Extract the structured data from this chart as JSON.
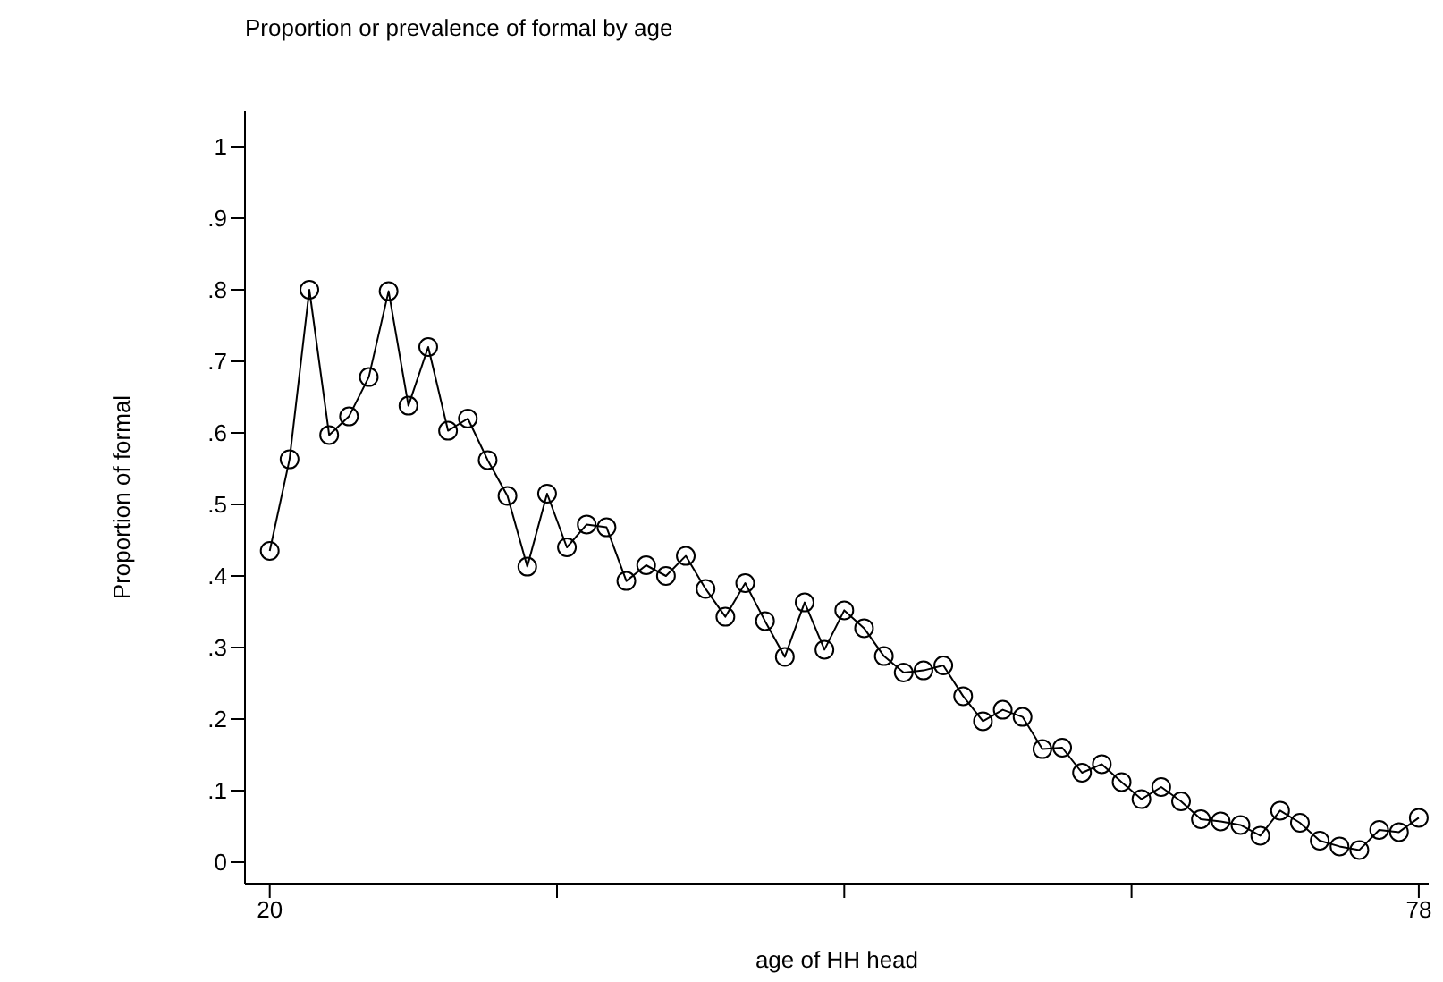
{
  "chart_data": {
    "type": "line",
    "title": "Proportion or prevalence of formal by age",
    "xlabel": "age of HH head",
    "ylabel": "Proportion of formal",
    "x": [
      20,
      21,
      22,
      23,
      24,
      25,
      26,
      27,
      28,
      29,
      30,
      31,
      32,
      33,
      34,
      35,
      36,
      37,
      38,
      39,
      40,
      41,
      42,
      43,
      44,
      45,
      46,
      47,
      48,
      49,
      50,
      51,
      52,
      53,
      54,
      55,
      56,
      57,
      58,
      59,
      60,
      61,
      62,
      63,
      64,
      65,
      66,
      67,
      68,
      69,
      70,
      71,
      72,
      73,
      74,
      75,
      76,
      77,
      78
    ],
    "series": [
      {
        "color": "#000000",
        "values": [
          0.435,
          0.563,
          0.8,
          0.597,
          0.623,
          0.678,
          0.798,
          0.638,
          0.72,
          0.603,
          0.62,
          0.562,
          0.512,
          0.413,
          0.515,
          0.44,
          0.472,
          0.468,
          0.393,
          0.415,
          0.4,
          0.428,
          0.382,
          0.343,
          0.39,
          0.337,
          0.287,
          0.363,
          0.297,
          0.352,
          0.327,
          0.288,
          0.265,
          0.268,
          0.275,
          0.232,
          0.197,
          0.213,
          0.203,
          0.158,
          0.16,
          0.125,
          0.137,
          0.112,
          0.088,
          0.105,
          0.085,
          0.06,
          0.057,
          0.052,
          0.037,
          0.072,
          0.055,
          0.03,
          0.022,
          0.017,
          0.045,
          0.042,
          0.062
        ]
      }
    ],
    "xlim": [
      18.75,
      78.5
    ],
    "xticks": [
      20,
      {
        "value": 34.5,
        "label": null
      },
      {
        "value": 49,
        "label": null
      },
      {
        "value": 63.5,
        "label": null
      },
      78
    ],
    "ylim": [
      -0.03,
      1.05
    ],
    "yticks": [
      0,
      {
        "value": 0.1,
        "label": ".1"
      },
      {
        "value": 0.2,
        "label": ".2"
      },
      {
        "value": 0.3,
        "label": ".3"
      },
      {
        "value": 0.4,
        "label": ".4"
      },
      {
        "value": 0.5,
        "label": ".5"
      },
      {
        "value": 0.6,
        "label": ".6"
      },
      {
        "value": 0.7,
        "label": ".7"
      },
      {
        "value": 0.8,
        "label": ".8"
      },
      {
        "value": 0.9,
        "label": ".9"
      },
      1
    ],
    "grid": false,
    "legend": false,
    "marker": "circle",
    "line_style": "solid"
  }
}
